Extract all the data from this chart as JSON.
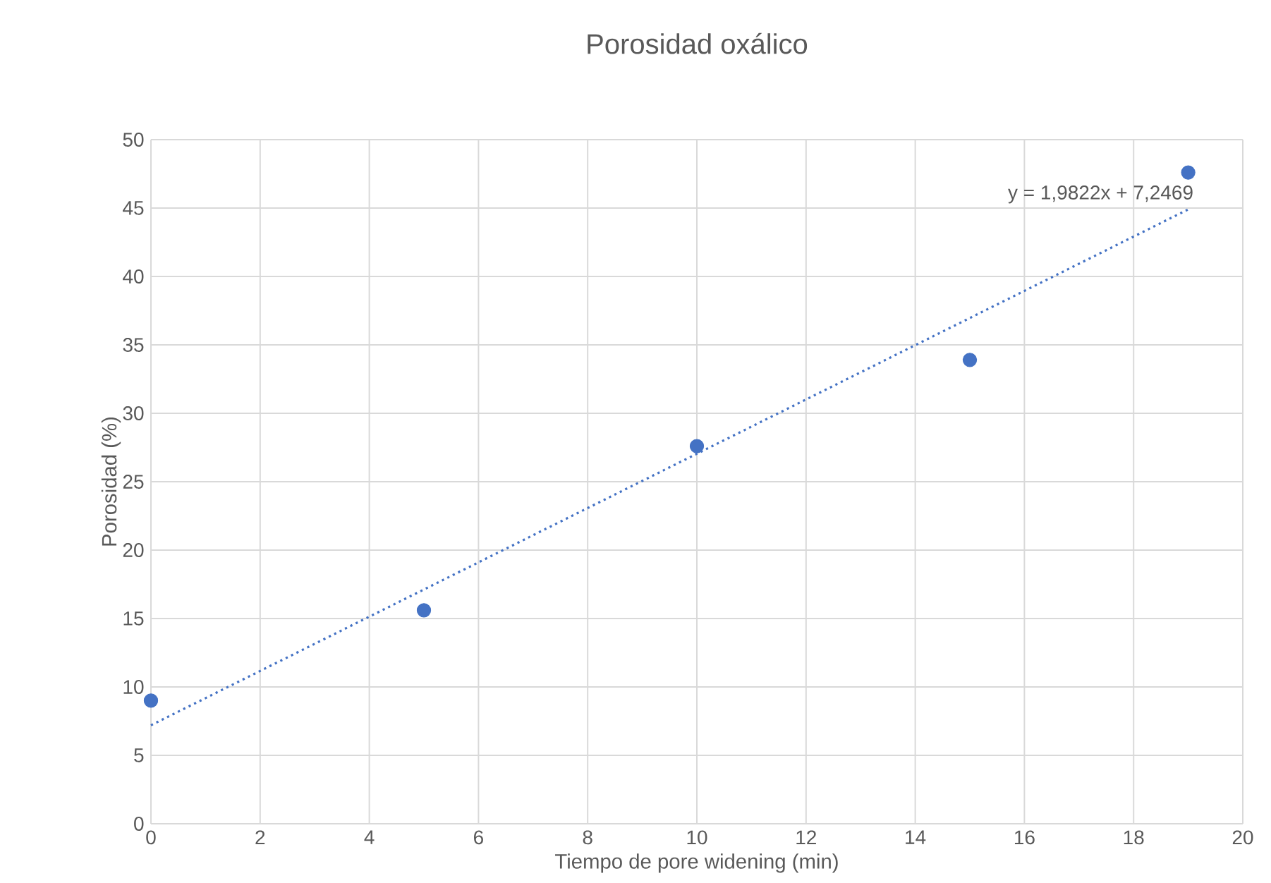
{
  "chart_data": {
    "type": "scatter",
    "title": "Porosidad oxálico",
    "xlabel": "Tiempo de pore widening (min)",
    "ylabel": "Porosidad (%)",
    "series": [
      {
        "color": "#4472c4",
        "marker": "circle",
        "x": [
          0,
          5,
          10,
          15,
          19
        ],
        "values": [
          9.0,
          15.6,
          27.6,
          33.9,
          47.6
        ]
      },
      {
        "type": "line",
        "color": "#4472c4",
        "marker": "none",
        "line_style": "dotted",
        "x": [
          0,
          19
        ],
        "values": [
          7.2,
          44.9
        ]
      }
    ],
    "annotations": [
      "y = 1,9822x + 7,2469"
    ],
    "xlim": [
      0,
      20
    ],
    "xticks": [
      0,
      2,
      4,
      6,
      8,
      10,
      12,
      14,
      16,
      18,
      20
    ],
    "ylim": [
      0,
      50
    ],
    "yticks": [
      0,
      5,
      10,
      15,
      20,
      25,
      30,
      35,
      40,
      45,
      50
    ],
    "grid": true
  }
}
